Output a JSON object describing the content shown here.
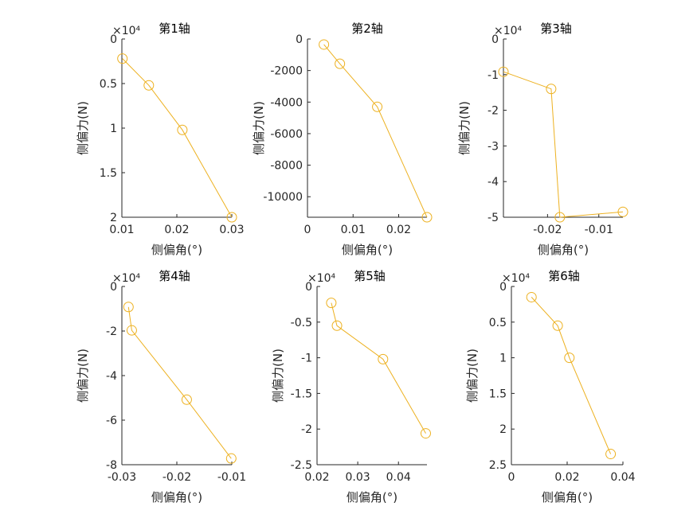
{
  "chart_data": [
    {
      "type": "line",
      "title": "第1轴",
      "xlabel": "侧偏角(°)",
      "ylabel": "侧偏力(N)",
      "y_exponent_label": "×10⁴",
      "y_reversed": true,
      "xlim": [
        0.01,
        0.03
      ],
      "ylim": [
        0,
        2
      ],
      "xticks": [
        0.01,
        0.02,
        0.03
      ],
      "xtick_labels": [
        "0.01",
        "0.02",
        "0.03"
      ],
      "yticks": [
        0,
        0.5,
        1,
        1.5,
        2
      ],
      "ytick_labels": [
        "0",
        "0.5",
        "1",
        "1.5",
        "2"
      ],
      "color": "#EDB120",
      "marker": "circle",
      "x": [
        0.0101,
        0.0149,
        0.021,
        0.03
      ],
      "y": [
        0.22,
        0.52,
        1.02,
        2.0
      ]
    },
    {
      "type": "line",
      "title": "第2轴",
      "xlabel": "侧偏角(°)",
      "ylabel": "侧偏力(N)",
      "y_exponent_label": "",
      "y_reversed": true,
      "xlim": [
        0.0,
        0.0262
      ],
      "ylim": [
        0,
        -11300
      ],
      "xticks": [
        0,
        0.01,
        0.02
      ],
      "xtick_labels": [
        "0",
        "0.01",
        "0.02"
      ],
      "yticks": [
        0,
        -2000,
        -4000,
        -6000,
        -8000,
        -10000
      ],
      "ytick_labels": [
        "0",
        "-2000",
        "-4000",
        "-6000",
        "-8000",
        "-10000"
      ],
      "color": "#EDB120",
      "marker": "circle",
      "x": [
        0.0036,
        0.0071,
        0.0153,
        0.0262
      ],
      "y": [
        -350,
        -1570,
        -4300,
        -11300
      ]
    },
    {
      "type": "line",
      "title": "第3轴",
      "xlabel": "侧偏角(°)",
      "ylabel": "侧偏力(N)",
      "y_exponent_label": "×10⁴",
      "y_reversed": true,
      "xlim": [
        -0.0286,
        -0.0053
      ],
      "ylim": [
        0,
        -5
      ],
      "xticks": [
        -0.02,
        -0.01
      ],
      "xtick_labels": [
        "-0.02",
        "-0.01"
      ],
      "yticks": [
        0,
        -1,
        -2,
        -3,
        -4,
        -5
      ],
      "ytick_labels": [
        "0",
        "-1",
        "-2",
        "-3",
        "-4",
        "-5"
      ],
      "color": "#EDB120",
      "marker": "circle",
      "x": [
        -0.0286,
        -0.0193,
        -0.0176,
        -0.0053
      ],
      "y": [
        -0.92,
        -1.4,
        -5.0,
        -4.85
      ]
    },
    {
      "type": "line",
      "title": "第4轴",
      "xlabel": "侧偏角(°)",
      "ylabel": "侧偏力(N)",
      "y_exponent_label": "×10⁴",
      "y_reversed": true,
      "xlim": [
        -0.03,
        -0.01
      ],
      "ylim": [
        0,
        -8
      ],
      "xticks": [
        -0.03,
        -0.02,
        -0.01
      ],
      "xtick_labels": [
        "-0.03",
        "-0.02",
        "-0.01"
      ],
      "yticks": [
        0,
        -2,
        -4,
        -6,
        -8
      ],
      "ytick_labels": [
        "0",
        "-2",
        "-4",
        "-6",
        "-8"
      ],
      "color": "#EDB120",
      "marker": "circle",
      "x": [
        -0.0288,
        -0.0282,
        -0.0182,
        -0.0101
      ],
      "y": [
        -0.92,
        -1.97,
        -5.08,
        -7.72
      ]
    },
    {
      "type": "line",
      "title": "第5轴",
      "xlabel": "侧偏角(°)",
      "ylabel": "侧偏力(N)",
      "y_exponent_label": "×10⁴",
      "y_reversed": true,
      "xlim": [
        0.02,
        0.047
      ],
      "ylim": [
        0,
        -2.5
      ],
      "xticks": [
        0.02,
        0.03,
        0.04
      ],
      "xtick_labels": [
        "0.02",
        "0.03",
        "0.04"
      ],
      "yticks": [
        0,
        -0.5,
        -1,
        -1.5,
        -2,
        -2.5
      ],
      "ytick_labels": [
        "0",
        "-0.5",
        "-1",
        "-1.5",
        "-2",
        "-2.5"
      ],
      "color": "#EDB120",
      "marker": "circle",
      "x": [
        0.0235,
        0.0249,
        0.0362,
        0.0467
      ],
      "y": [
        -0.23,
        -0.55,
        -1.02,
        -2.06
      ]
    },
    {
      "type": "line",
      "title": "第6轴",
      "xlabel": "侧偏角(°)",
      "ylabel": "侧偏力(N)",
      "y_exponent_label": "×10⁴",
      "y_reversed": true,
      "xlim": [
        0,
        0.04
      ],
      "ylim": [
        0,
        2.5
      ],
      "xticks": [
        0,
        0.02,
        0.04
      ],
      "xtick_labels": [
        "0",
        "0.02",
        "0.04"
      ],
      "yticks": [
        0,
        0.5,
        1,
        1.5,
        2,
        2.5
      ],
      "ytick_labels": [
        "0",
        "0.5",
        "1",
        "1.5",
        "2",
        "2.5"
      ],
      "color": "#EDB120",
      "marker": "circle",
      "x": [
        0.0072,
        0.0166,
        0.0208,
        0.0356
      ],
      "y": [
        0.15,
        0.55,
        1.0,
        2.35
      ]
    }
  ]
}
